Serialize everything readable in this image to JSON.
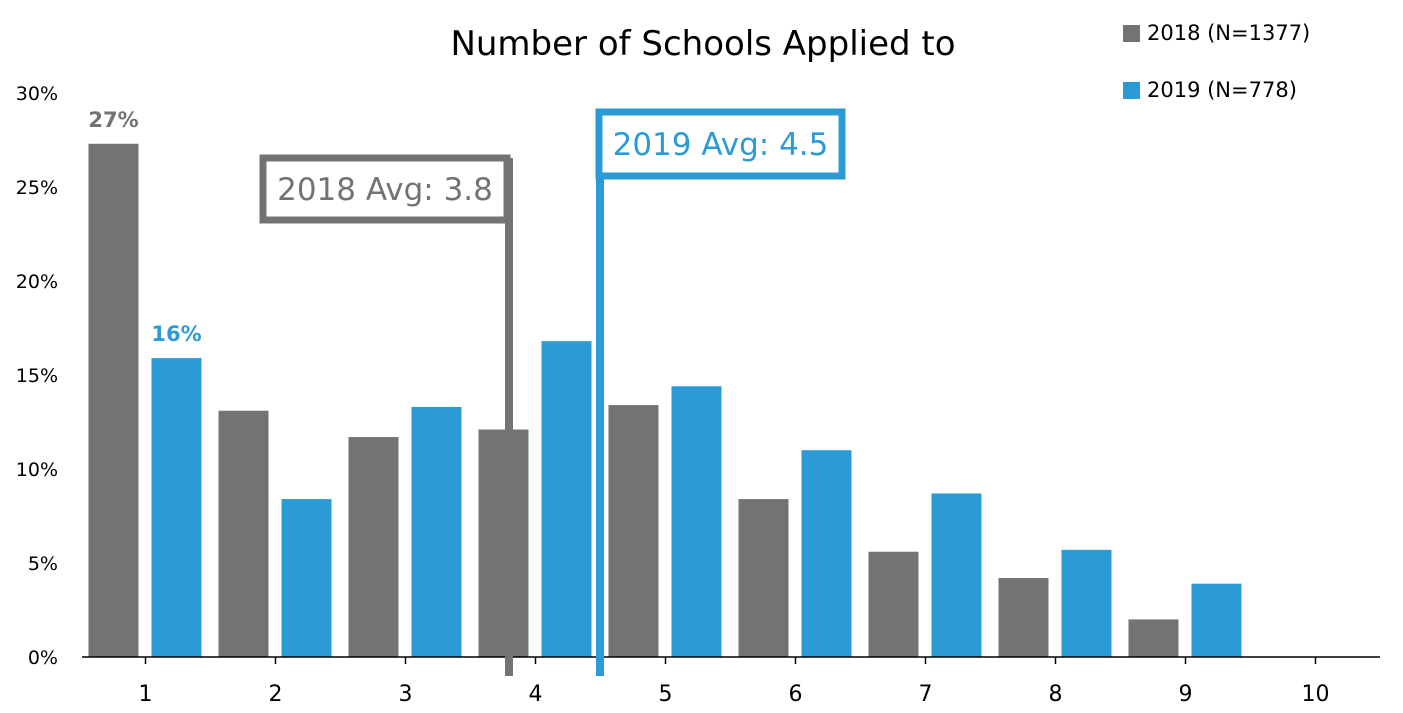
{
  "chart_data": {
    "type": "bar",
    "title": "Number of Schools Applied to",
    "xlabel": "",
    "ylabel": "",
    "categories": [
      "1",
      "2",
      "3",
      "4",
      "5",
      "6",
      "7",
      "8",
      "9",
      "10"
    ],
    "ylim": [
      0,
      30
    ],
    "yticks": [
      "0%",
      "5%",
      "10%",
      "15%",
      "20%",
      "25%",
      "30%"
    ],
    "ytick_values": [
      0,
      5,
      10,
      15,
      20,
      25,
      30
    ],
    "grid": false,
    "legend_position": "top-right",
    "series": [
      {
        "name": "2018 (N=1377)",
        "color": "#737373",
        "values": [
          27.3,
          13.1,
          11.7,
          12.1,
          13.4,
          8.4,
          5.6,
          4.2,
          2.0,
          0
        ]
      },
      {
        "name": "2019 (N=778)",
        "color": "#2b9bd6",
        "values": [
          15.9,
          8.4,
          13.3,
          16.8,
          14.4,
          11.0,
          8.7,
          5.7,
          3.9,
          0
        ]
      }
    ],
    "data_labels": [
      {
        "series": 0,
        "category": 0,
        "text": "27%"
      },
      {
        "series": 1,
        "category": 0,
        "text": "16%"
      }
    ],
    "annotations": [
      {
        "text": "2018 Avg: 3.8",
        "x": 3.8,
        "color": "#737373"
      },
      {
        "text": "2019 Avg: 4.5",
        "x": 4.5,
        "color": "#2b9bd6"
      }
    ]
  }
}
